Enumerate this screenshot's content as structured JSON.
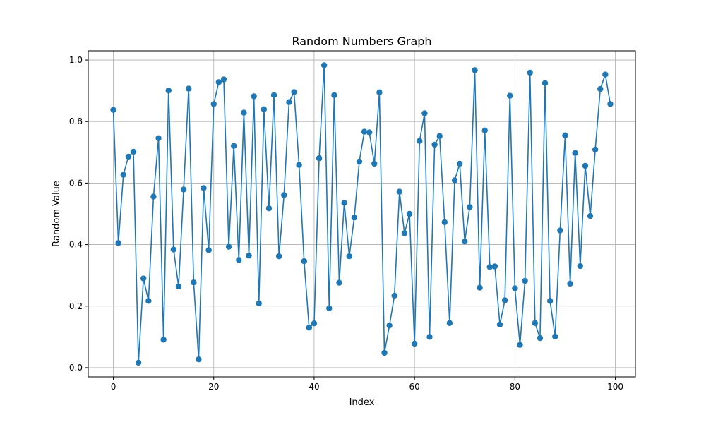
{
  "chart_data": {
    "type": "line",
    "title": "Random Numbers Graph",
    "xlabel": "Index",
    "ylabel": "Random Value",
    "xlim": [
      -5,
      104
    ],
    "ylim": [
      -0.03,
      1.03
    ],
    "xticks": [
      0,
      20,
      40,
      60,
      80,
      100
    ],
    "xtick_labels": [
      "0",
      "20",
      "40",
      "60",
      "80",
      "100"
    ],
    "yticks": [
      0.0,
      0.2,
      0.4,
      0.6,
      0.8,
      1.0
    ],
    "ytick_labels": [
      "0.0",
      "0.2",
      "0.4",
      "0.6",
      "0.8",
      "1.0"
    ],
    "grid": true,
    "marker": "circle",
    "line_color": "#1f77b4",
    "series": [
      {
        "x": [
          0,
          1,
          2,
          3,
          4,
          5,
          6,
          7,
          8,
          9,
          10,
          11,
          12,
          13,
          14,
          15,
          16,
          17,
          18,
          19,
          20,
          21,
          22,
          23,
          24,
          25,
          26,
          27,
          28,
          29,
          30,
          31,
          32,
          33,
          34,
          35,
          36,
          37,
          38,
          39,
          40,
          41,
          42,
          43,
          44,
          45,
          46,
          47,
          48,
          49,
          50,
          51,
          52,
          53,
          54,
          55,
          56,
          57,
          58,
          59,
          60,
          61,
          62,
          63,
          64,
          65,
          66,
          67,
          68,
          69,
          70,
          71,
          72,
          73,
          74,
          75,
          76,
          77,
          78,
          79,
          80,
          81,
          82,
          83,
          84,
          85,
          86,
          87,
          88,
          89,
          90,
          91,
          92,
          93,
          94,
          95,
          96,
          97,
          98,
          99
        ],
        "values": [
          0.838,
          0.405,
          0.627,
          0.686,
          0.702,
          0.016,
          0.29,
          0.217,
          0.556,
          0.746,
          0.091,
          0.901,
          0.384,
          0.264,
          0.579,
          0.907,
          0.277,
          0.027,
          0.584,
          0.382,
          0.857,
          0.928,
          0.937,
          0.393,
          0.721,
          0.35,
          0.829,
          0.364,
          0.882,
          0.209,
          0.84,
          0.518,
          0.886,
          0.362,
          0.561,
          0.863,
          0.896,
          0.659,
          0.346,
          0.13,
          0.144,
          0.681,
          0.983,
          0.193,
          0.886,
          0.276,
          0.536,
          0.362,
          0.488,
          0.67,
          0.767,
          0.765,
          0.663,
          0.895,
          0.048,
          0.137,
          0.234,
          0.572,
          0.437,
          0.5,
          0.078,
          0.737,
          0.827,
          0.1,
          0.725,
          0.753,
          0.473,
          0.145,
          0.609,
          0.663,
          0.41,
          0.522,
          0.967,
          0.26,
          0.771,
          0.327,
          0.329,
          0.14,
          0.219,
          0.884,
          0.258,
          0.074,
          0.282,
          0.959,
          0.145,
          0.096,
          0.925,
          0.217,
          0.101,
          0.446,
          0.755,
          0.273,
          0.698,
          0.33,
          0.656,
          0.493,
          0.709,
          0.906,
          0.953,
          0.857
        ]
      }
    ]
  }
}
